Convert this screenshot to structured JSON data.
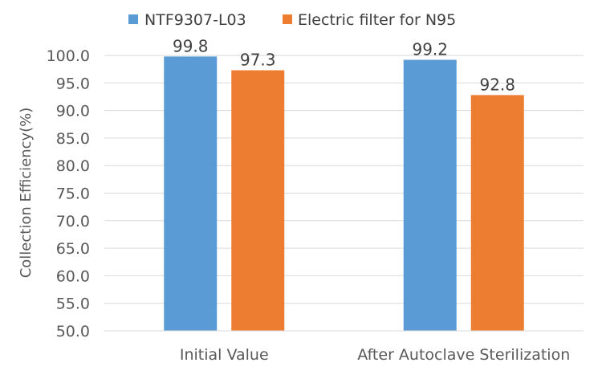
{
  "chart_data": {
    "type": "bar",
    "title": "",
    "xlabel": "",
    "ylabel": "Collection Efficiency(%)",
    "ylim": [
      50.0,
      100.0
    ],
    "ytick_step": 5.0,
    "ytick_decimals": 1,
    "grid": true,
    "legend_position": "top",
    "categories": [
      "Initial Value",
      "After Autoclave Sterilization"
    ],
    "series": [
      {
        "name": "NTF9307-L03",
        "color": "#5b9bd5",
        "values": [
          99.8,
          99.2
        ]
      },
      {
        "name": "Electric filter for N95",
        "color": "#ed7d31",
        "values": [
          97.3,
          92.8
        ]
      }
    ]
  }
}
